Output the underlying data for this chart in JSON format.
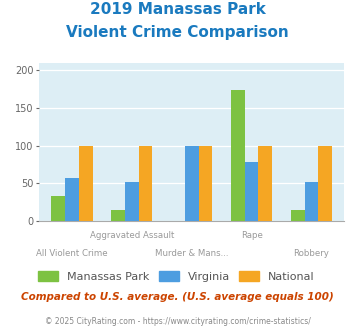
{
  "title_line1": "2019 Manassas Park",
  "title_line2": "Violent Crime Comparison",
  "title_color": "#1a7abf",
  "series": {
    "Manassas Park": {
      "color": "#7dc242",
      "values": [
        33,
        15,
        0,
        174,
        15
      ]
    },
    "Virginia": {
      "color": "#4d9de0",
      "values": [
        57,
        52,
        100,
        79,
        52
      ]
    },
    "National": {
      "color": "#f5a623",
      "values": [
        100,
        100,
        100,
        100,
        100
      ]
    }
  },
  "ylim": [
    0,
    210
  ],
  "yticks": [
    0,
    50,
    100,
    150,
    200
  ],
  "plot_bg_color": "#ddeef5",
  "top_labels": [
    "",
    "Aggravated Assault",
    "",
    "Rape",
    ""
  ],
  "bottom_labels": [
    "All Violent Crime",
    "",
    "Murder & Mans...",
    "",
    "Robbery"
  ],
  "footer_text": "Compared to U.S. average. (U.S. average equals 100)",
  "footer_color": "#cc4400",
  "copyright_text": "© 2025 CityRating.com - https://www.cityrating.com/crime-statistics/",
  "copyright_color": "#888888",
  "legend_labels": [
    "Manassas Park",
    "Virginia",
    "National"
  ],
  "legend_colors": [
    "#7dc242",
    "#4d9de0",
    "#f5a623"
  ]
}
